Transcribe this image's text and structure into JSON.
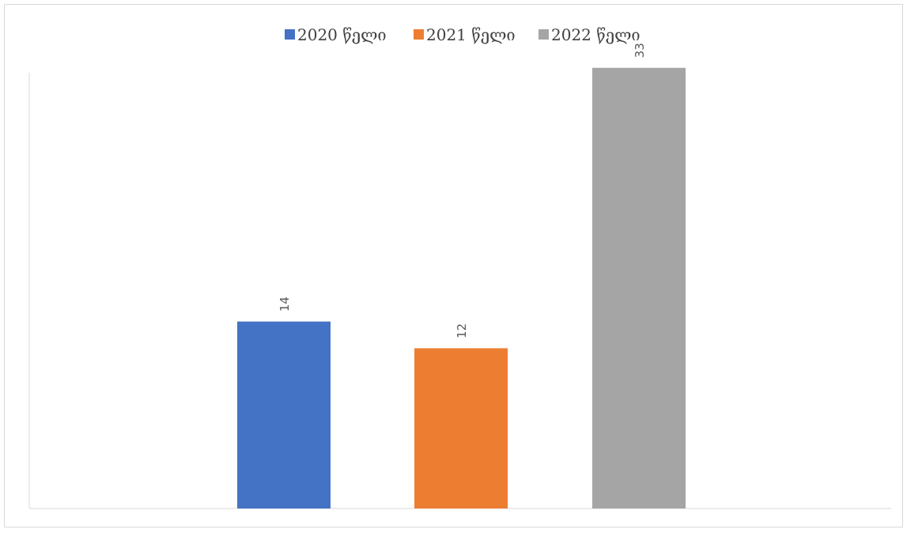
{
  "chart_data": {
    "type": "bar",
    "title": "",
    "xlabel": "",
    "ylabel": "",
    "ylim": [
      0,
      35
    ],
    "grid": false,
    "legend_position": "top",
    "data_labels_rotated": true,
    "series": [
      {
        "name": "2020 წელი",
        "values": [
          14
        ],
        "color": "#4472c4"
      },
      {
        "name": "2021 წელი",
        "values": [
          12
        ],
        "color": "#ed7d31"
      },
      {
        "name": "2022 წელი",
        "values": [
          33
        ],
        "color": "#a5a5a5"
      }
    ],
    "data_labels": [
      "14",
      "12",
      "33"
    ]
  }
}
